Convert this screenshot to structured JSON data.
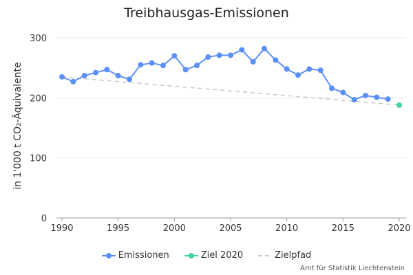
{
  "chart_data": {
    "type": "line",
    "title": "Treibhausgas-Emissionen",
    "xlabel": "",
    "ylabel": "in 1'000 t CO₂-Äquivalente",
    "xlim": [
      1990,
      2020
    ],
    "ylim": [
      0,
      300
    ],
    "x_ticks": [
      "1990",
      "1995",
      "2000",
      "2005",
      "2010",
      "2015",
      "2020"
    ],
    "y_ticks": [
      "0",
      "100",
      "200",
      "300"
    ],
    "grid": true,
    "legend_position": "bottom",
    "series": [
      {
        "name": "Emissionen",
        "kind": "line-markers",
        "color": "#5b8ff9",
        "x": [
          1990,
          1991,
          1992,
          1993,
          1994,
          1995,
          1996,
          1997,
          1998,
          1999,
          2000,
          2001,
          2002,
          2003,
          2004,
          2005,
          2006,
          2007,
          2008,
          2009,
          2010,
          2011,
          2012,
          2013,
          2014,
          2015,
          2016,
          2017,
          2018,
          2019
        ],
        "y": [
          235,
          227,
          237,
          242,
          247,
          237,
          231,
          255,
          258,
          254,
          270,
          247,
          254,
          268,
          271,
          271,
          280,
          260,
          282,
          263,
          248,
          238,
          248,
          246,
          216,
          209,
          197,
          204,
          201,
          198
        ]
      },
      {
        "name": "Ziel 2020",
        "kind": "marker",
        "color": "#3fd3a5",
        "x": [
          2020
        ],
        "y": [
          188
        ]
      },
      {
        "name": "Zielpfad",
        "kind": "dashed-line",
        "color": "#c8c8c8",
        "x": [
          1990,
          2020
        ],
        "y": [
          235,
          188
        ]
      }
    ]
  },
  "footer": {
    "credit": "Amt für Statistik Liechtenstein"
  }
}
